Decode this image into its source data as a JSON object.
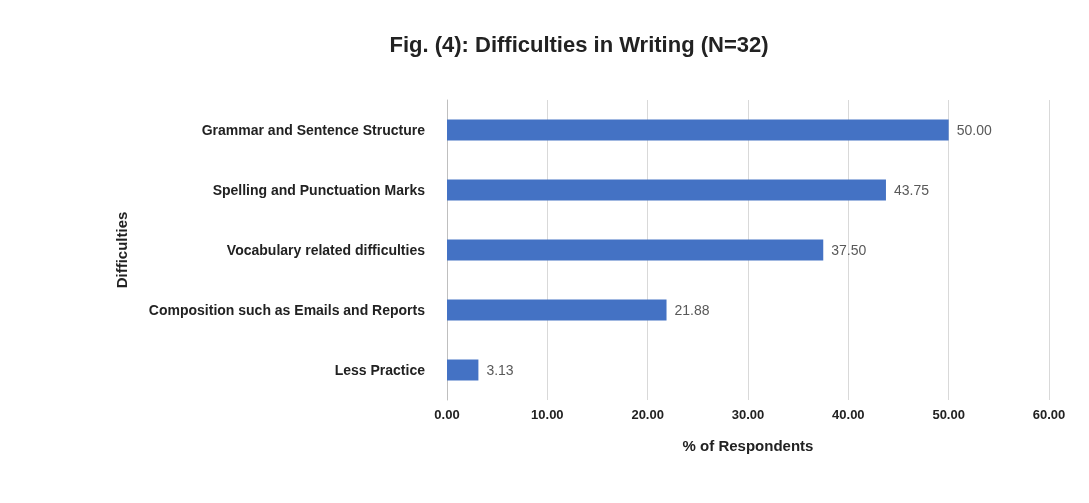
{
  "chart_data": {
    "type": "bar",
    "orientation": "horizontal",
    "title": "Fig. (4): Difficulties in Writing (N=32)",
    "xlabel": "% of Respondents",
    "ylabel": "Difficulties",
    "categories": [
      "Grammar and Sentence Structure",
      "Spelling and Punctuation Marks",
      "Vocabulary related difficulties",
      "Composition such as Emails and Reports",
      "Less Practice"
    ],
    "values": [
      50,
      43.75,
      37.5,
      21.88,
      3.13
    ],
    "value_labels": [
      "50.00",
      "43.75",
      "37.50",
      "21.88",
      "3.13"
    ],
    "color": "#4472c4",
    "xlim": [
      0,
      60
    ],
    "xticks": [
      {
        "value": 0,
        "label": "0.00"
      },
      {
        "value": 10,
        "label": "10.00"
      },
      {
        "value": 20,
        "label": "20.00"
      },
      {
        "value": 30,
        "label": "30.00"
      },
      {
        "value": 40,
        "label": "40.00"
      },
      {
        "value": 50,
        "label": "50.00"
      },
      {
        "value": 60,
        "label": "60.00"
      }
    ],
    "grid": "x"
  }
}
